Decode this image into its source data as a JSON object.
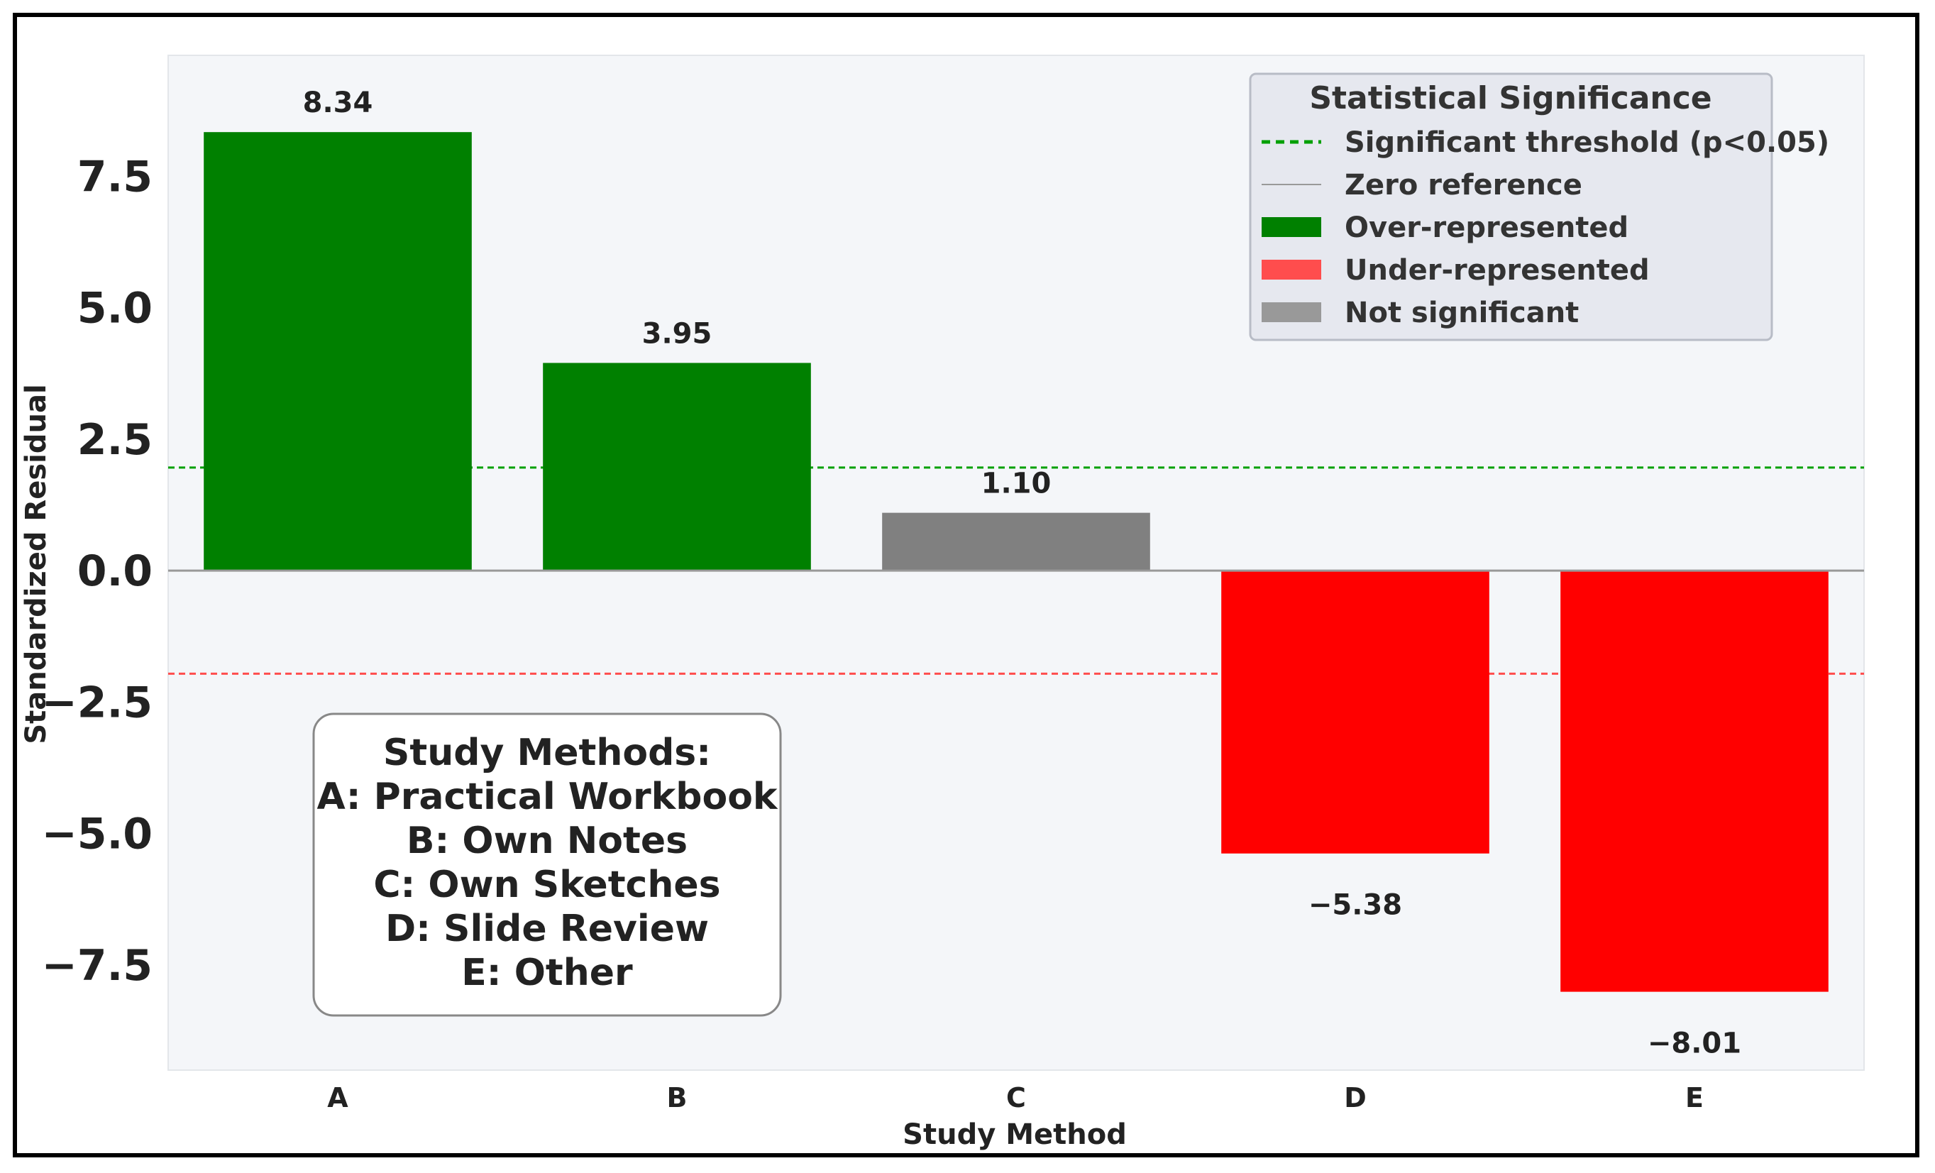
{
  "chart_data": {
    "type": "bar",
    "title": "",
    "xlabel": "Study Method",
    "ylabel": "Standardized Residual",
    "categories": [
      "A",
      "B",
      "C",
      "D",
      "E"
    ],
    "values": [
      8.34,
      3.95,
      1.1,
      -5.38,
      -8.01
    ],
    "value_labels": [
      "8.34",
      "3.95",
      "1.10",
      "−5.38",
      "−8.01"
    ],
    "status": [
      "over",
      "over",
      "not_significant",
      "under",
      "under"
    ],
    "ylim": [
      -9.5,
      9.8
    ],
    "yticks": [
      7.5,
      5.0,
      2.5,
      0.0,
      -2.5,
      -5.0,
      -7.5
    ],
    "ytick_labels": [
      "7.5",
      "5.0",
      "2.5",
      "0.0",
      "−2.5",
      "−5.0",
      "−7.5"
    ],
    "thresholds": {
      "upper": 1.96,
      "lower": -1.96,
      "zero": 0
    },
    "colors": {
      "over": "#008000",
      "under": "#ff0000",
      "not_significant": "#808080",
      "upper_threshold": "#00a000",
      "lower_threshold": "#ff4d4d",
      "zero_line": "#999999",
      "plot_bg": "#f4f6f9"
    },
    "legend": {
      "title": "Statistical Significance",
      "position": "top-right",
      "entries": [
        {
          "label": "Significant threshold (p<0.05)",
          "kind": "dashed",
          "color": "#00a000"
        },
        {
          "label": "Zero reference",
          "kind": "line",
          "color": "#999999"
        },
        {
          "label": "Over-represented",
          "kind": "patch",
          "color": "#008000"
        },
        {
          "label": "Under-represented",
          "kind": "patch",
          "color": "#ff4d4d"
        },
        {
          "label": "Not significant",
          "kind": "patch",
          "color": "#999999"
        }
      ]
    },
    "annotation": {
      "position": "bottom-left",
      "lines": [
        "Study Methods:",
        "A: Practical Workbook",
        "B: Own Notes",
        "C: Own Sketches",
        "D: Slide Review",
        "E: Other"
      ]
    }
  }
}
